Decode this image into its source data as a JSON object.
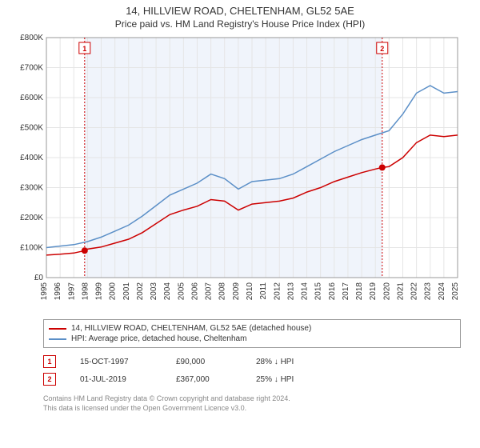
{
  "title": "14, HILLVIEW ROAD, CHELTENHAM, GL52 5AE",
  "subtitle": "Price paid vs. HM Land Registry's House Price Index (HPI)",
  "chart": {
    "type": "line",
    "plot_background": "#ffffff",
    "highlight_start_x": 1997.79,
    "highlight_end_x": 2019.5,
    "highlight_fill": "#f0f4fb",
    "x_min": 1995,
    "x_max": 2025,
    "x_ticks": [
      1995,
      1996,
      1997,
      1998,
      1999,
      2000,
      2001,
      2002,
      2003,
      2004,
      2005,
      2006,
      2007,
      2008,
      2009,
      2010,
      2011,
      2012,
      2013,
      2014,
      2015,
      2016,
      2017,
      2018,
      2019,
      2020,
      2021,
      2022,
      2023,
      2024,
      2025
    ],
    "y_min": 0,
    "y_max": 800000,
    "y_ticks": [
      0,
      100000,
      200000,
      300000,
      400000,
      500000,
      600000,
      700000,
      800000
    ],
    "y_tick_labels": [
      "£0",
      "£100K",
      "£200K",
      "£300K",
      "£400K",
      "£500K",
      "£600K",
      "£700K",
      "£800K"
    ],
    "grid_color": "#e5e5e5",
    "axis_color": "#999999",
    "series": [
      {
        "name": "price_paid",
        "label": "14, HILLVIEW ROAD, CHELTENHAM, GL52 5AE (detached house)",
        "color": "#cc0000",
        "line_width": 1.5,
        "data": [
          [
            1995,
            75000
          ],
          [
            1996,
            78000
          ],
          [
            1997,
            82000
          ],
          [
            1997.79,
            90000
          ],
          [
            1998,
            95000
          ],
          [
            1999,
            102000
          ],
          [
            2000,
            115000
          ],
          [
            2001,
            128000
          ],
          [
            2002,
            150000
          ],
          [
            2003,
            180000
          ],
          [
            2004,
            210000
          ],
          [
            2005,
            225000
          ],
          [
            2006,
            238000
          ],
          [
            2007,
            260000
          ],
          [
            2008,
            255000
          ],
          [
            2009,
            225000
          ],
          [
            2010,
            245000
          ],
          [
            2011,
            250000
          ],
          [
            2012,
            255000
          ],
          [
            2013,
            265000
          ],
          [
            2014,
            285000
          ],
          [
            2015,
            300000
          ],
          [
            2016,
            320000
          ],
          [
            2017,
            335000
          ],
          [
            2018,
            350000
          ],
          [
            2019,
            362000
          ],
          [
            2019.5,
            367000
          ],
          [
            2020,
            370000
          ],
          [
            2021,
            400000
          ],
          [
            2022,
            450000
          ],
          [
            2023,
            475000
          ],
          [
            2024,
            470000
          ],
          [
            2025,
            475000
          ]
        ]
      },
      {
        "name": "hpi",
        "label": "HPI: Average price, detached house, Cheltenham",
        "color": "#5b8fc7",
        "line_width": 1.5,
        "data": [
          [
            1995,
            100000
          ],
          [
            1996,
            105000
          ],
          [
            1997,
            110000
          ],
          [
            1998,
            120000
          ],
          [
            1999,
            135000
          ],
          [
            2000,
            155000
          ],
          [
            2001,
            175000
          ],
          [
            2002,
            205000
          ],
          [
            2003,
            240000
          ],
          [
            2004,
            275000
          ],
          [
            2005,
            295000
          ],
          [
            2006,
            315000
          ],
          [
            2007,
            345000
          ],
          [
            2008,
            330000
          ],
          [
            2009,
            295000
          ],
          [
            2010,
            320000
          ],
          [
            2011,
            325000
          ],
          [
            2012,
            330000
          ],
          [
            2013,
            345000
          ],
          [
            2014,
            370000
          ],
          [
            2015,
            395000
          ],
          [
            2016,
            420000
          ],
          [
            2017,
            440000
          ],
          [
            2018,
            460000
          ],
          [
            2019,
            475000
          ],
          [
            2020,
            490000
          ],
          [
            2021,
            545000
          ],
          [
            2022,
            615000
          ],
          [
            2023,
            640000
          ],
          [
            2024,
            615000
          ],
          [
            2025,
            620000
          ]
        ]
      }
    ],
    "markers": [
      {
        "n": "1",
        "x": 1997.79,
        "y": 90000
      },
      {
        "n": "2",
        "x": 2019.5,
        "y": 367000
      }
    ],
    "marker_color": "#cc0000"
  },
  "legend": {
    "border_color": "#999999",
    "items": [
      {
        "color": "#cc0000",
        "label": "14, HILLVIEW ROAD, CHELTENHAM, GL52 5AE (detached house)"
      },
      {
        "color": "#5b8fc7",
        "label": "HPI: Average price, detached house, Cheltenham"
      }
    ]
  },
  "events": [
    {
      "n": "1",
      "date": "15-OCT-1997",
      "price": "£90,000",
      "pct": "28% ↓ HPI",
      "box_color": "#cc0000"
    },
    {
      "n": "2",
      "date": "01-JUL-2019",
      "price": "£367,000",
      "pct": "25% ↓ HPI",
      "box_color": "#cc0000"
    }
  ],
  "footer_line1": "Contains HM Land Registry data © Crown copyright and database right 2024.",
  "footer_line2": "This data is licensed under the Open Government Licence v3.0."
}
